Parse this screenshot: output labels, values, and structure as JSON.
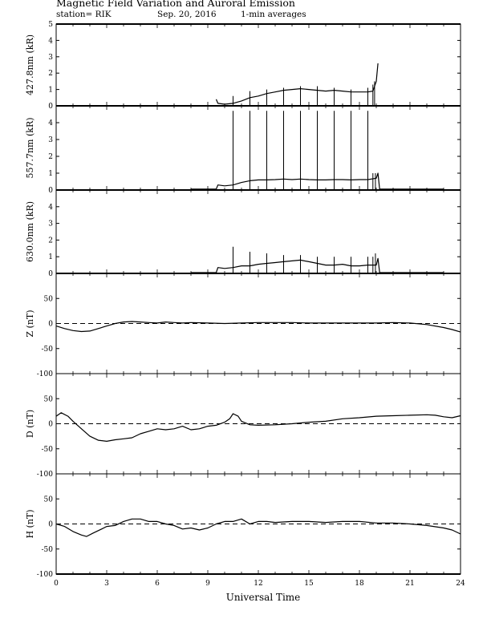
{
  "header": {
    "title": "Magnetic Field Variation and Auroral Emission",
    "station": "station= RIK",
    "date": "Sep. 20, 2016",
    "averaging": "1-min averages"
  },
  "x_axis": {
    "label": "Universal Time",
    "ticks": [
      "0",
      "3",
      "6",
      "9",
      "12",
      "15",
      "18",
      "21",
      "24"
    ]
  },
  "chart_data": [
    {
      "type": "line",
      "ylabel": "427.8nm (kR)",
      "xlim": [
        0,
        24
      ],
      "ylim": [
        0,
        5
      ],
      "yticks": [
        "0",
        "1",
        "2",
        "3",
        "4",
        "5"
      ],
      "dashed_zero": false,
      "series": [
        {
          "points": [
            [
              9.5,
              0.4
            ],
            [
              9.6,
              0.15
            ],
            [
              10,
              0.1
            ],
            [
              10.5,
              0.15
            ],
            [
              11,
              0.3
            ],
            [
              11.5,
              0.5
            ],
            [
              12,
              0.6
            ],
            [
              12.5,
              0.75
            ],
            [
              13,
              0.85
            ],
            [
              13.5,
              0.95
            ],
            [
              14,
              1.0
            ],
            [
              14.5,
              1.05
            ],
            [
              15,
              1.0
            ],
            [
              15.5,
              0.95
            ],
            [
              16,
              0.9
            ],
            [
              16.5,
              0.95
            ],
            [
              17,
              0.9
            ],
            [
              17.5,
              0.85
            ],
            [
              18,
              0.85
            ],
            [
              18.5,
              0.85
            ],
            [
              18.8,
              0.9
            ],
            [
              19.0,
              1.5
            ],
            [
              19.1,
              2.6
            ]
          ],
          "spikes": [
            [
              10.5,
              0.6
            ],
            [
              11.5,
              0.9
            ],
            [
              12.5,
              1.0
            ],
            [
              13.5,
              1.1
            ],
            [
              14.5,
              1.2
            ],
            [
              15.5,
              1.2
            ],
            [
              16.5,
              1.1
            ],
            [
              17.5,
              1.0
            ],
            [
              18.5,
              1.1
            ],
            [
              18.8,
              1.3
            ],
            [
              18.9,
              1.5
            ]
          ]
        }
      ]
    },
    {
      "type": "line",
      "ylabel": "557.7nm (kR)",
      "xlim": [
        0,
        24
      ],
      "ylim": [
        0,
        5
      ],
      "yticks": [
        "0",
        "1",
        "2",
        "3",
        "4"
      ],
      "dashed_zero": false,
      "series": [
        {
          "points": [
            [
              8.0,
              0.05
            ],
            [
              9.5,
              0.05
            ],
            [
              9.6,
              0.3
            ],
            [
              10,
              0.25
            ],
            [
              10.5,
              0.3
            ],
            [
              11,
              0.45
            ],
            [
              11.5,
              0.55
            ],
            [
              12,
              0.6
            ],
            [
              12.5,
              0.6
            ],
            [
              13,
              0.62
            ],
            [
              13.5,
              0.65
            ],
            [
              14,
              0.62
            ],
            [
              14.5,
              0.65
            ],
            [
              15,
              0.62
            ],
            [
              15.5,
              0.6
            ],
            [
              16,
              0.6
            ],
            [
              16.5,
              0.62
            ],
            [
              17,
              0.62
            ],
            [
              17.5,
              0.6
            ],
            [
              18,
              0.62
            ],
            [
              18.5,
              0.62
            ],
            [
              19.0,
              0.7
            ],
            [
              19.1,
              1.0
            ],
            [
              19.2,
              0.05
            ],
            [
              23.0,
              0.05
            ]
          ],
          "spikes": [
            [
              10.5,
              4.7
            ],
            [
              11.5,
              4.7
            ],
            [
              12.5,
              4.7
            ],
            [
              13.5,
              4.7
            ],
            [
              14.5,
              4.7
            ],
            [
              15.5,
              4.7
            ],
            [
              16.5,
              4.7
            ],
            [
              17.5,
              4.7
            ],
            [
              18.5,
              4.7
            ],
            [
              18.8,
              1.0
            ],
            [
              18.95,
              1.0
            ]
          ]
        }
      ]
    },
    {
      "type": "line",
      "ylabel": "630.0nm (kR)",
      "xlim": [
        0,
        24
      ],
      "ylim": [
        0,
        5
      ],
      "yticks": [
        "0",
        "1",
        "2",
        "3",
        "4"
      ],
      "dashed_zero": false,
      "series": [
        {
          "points": [
            [
              8.0,
              0.05
            ],
            [
              9.5,
              0.05
            ],
            [
              9.6,
              0.35
            ],
            [
              10,
              0.3
            ],
            [
              10.5,
              0.35
            ],
            [
              11,
              0.45
            ],
            [
              11.5,
              0.45
            ],
            [
              12,
              0.55
            ],
            [
              12.5,
              0.6
            ],
            [
              13,
              0.65
            ],
            [
              13.5,
              0.7
            ],
            [
              14,
              0.75
            ],
            [
              14.5,
              0.8
            ],
            [
              15,
              0.7
            ],
            [
              15.5,
              0.6
            ],
            [
              16,
              0.5
            ],
            [
              16.5,
              0.5
            ],
            [
              17,
              0.55
            ],
            [
              17.5,
              0.45
            ],
            [
              18,
              0.45
            ],
            [
              18.5,
              0.5
            ],
            [
              19.0,
              0.5
            ],
            [
              19.1,
              0.9
            ],
            [
              19.2,
              0.05
            ],
            [
              23.0,
              0.05
            ]
          ],
          "spikes": [
            [
              10.5,
              1.6
            ],
            [
              11.5,
              1.3
            ],
            [
              12.5,
              1.2
            ],
            [
              13.5,
              1.1
            ],
            [
              14.5,
              1.1
            ],
            [
              15.5,
              1.0
            ],
            [
              16.5,
              1.0
            ],
            [
              17.5,
              1.0
            ],
            [
              18.5,
              1.0
            ],
            [
              18.8,
              1.0
            ],
            [
              18.95,
              1.2
            ]
          ]
        }
      ]
    },
    {
      "type": "line",
      "ylabel": "Z (nT)",
      "xlim": [
        0,
        24
      ],
      "ylim": [
        -100,
        100
      ],
      "yticks": [
        "-100",
        "-50",
        "0",
        "50"
      ],
      "dashed_zero": true,
      "series": [
        {
          "points": [
            [
              0,
              -5
            ],
            [
              0.5,
              -10
            ],
            [
              1,
              -14
            ],
            [
              1.5,
              -16
            ],
            [
              2,
              -15
            ],
            [
              2.5,
              -10
            ],
            [
              3,
              -5
            ],
            [
              3.5,
              0
            ],
            [
              4,
              3
            ],
            [
              4.5,
              4
            ],
            [
              5,
              3
            ],
            [
              5.5,
              2
            ],
            [
              6,
              1
            ],
            [
              6.5,
              3
            ],
            [
              7,
              2
            ],
            [
              7.5,
              1
            ],
            [
              8,
              2
            ],
            [
              9,
              1
            ],
            [
              10,
              0
            ],
            [
              11,
              1
            ],
            [
              12,
              2
            ],
            [
              13,
              2
            ],
            [
              14,
              2
            ],
            [
              15,
              1
            ],
            [
              16,
              1
            ],
            [
              17,
              1
            ],
            [
              18,
              1
            ],
            [
              19,
              1
            ],
            [
              20,
              2
            ],
            [
              21,
              1
            ],
            [
              22,
              -2
            ],
            [
              23,
              -8
            ],
            [
              23.5,
              -12
            ],
            [
              24,
              -17
            ]
          ]
        }
      ]
    },
    {
      "type": "line",
      "ylabel": "D (nT)",
      "xlim": [
        0,
        24
      ],
      "ylim": [
        -100,
        100
      ],
      "yticks": [
        "-100",
        "-50",
        "0",
        "50"
      ],
      "dashed_zero": true,
      "series": [
        {
          "points": [
            [
              0,
              15
            ],
            [
              0.3,
              22
            ],
            [
              0.7,
              15
            ],
            [
              1,
              5
            ],
            [
              1.5,
              -10
            ],
            [
              2,
              -25
            ],
            [
              2.5,
              -33
            ],
            [
              3,
              -35
            ],
            [
              3.5,
              -32
            ],
            [
              4,
              -30
            ],
            [
              4.5,
              -28
            ],
            [
              5,
              -20
            ],
            [
              5.5,
              -15
            ],
            [
              6,
              -10
            ],
            [
              6.5,
              -12
            ],
            [
              7,
              -10
            ],
            [
              7.5,
              -5
            ],
            [
              8,
              -12
            ],
            [
              8.5,
              -10
            ],
            [
              9,
              -5
            ],
            [
              9.5,
              -3
            ],
            [
              10,
              3
            ],
            [
              10.3,
              10
            ],
            [
              10.5,
              20
            ],
            [
              10.8,
              15
            ],
            [
              11,
              5
            ],
            [
              11.5,
              -2
            ],
            [
              12,
              -3
            ],
            [
              13,
              -2
            ],
            [
              14,
              0
            ],
            [
              15,
              3
            ],
            [
              16,
              5
            ],
            [
              17,
              10
            ],
            [
              18,
              12
            ],
            [
              19,
              15
            ],
            [
              20,
              16
            ],
            [
              21,
              17
            ],
            [
              22,
              18
            ],
            [
              22.5,
              17
            ],
            [
              23,
              14
            ],
            [
              23.5,
              12
            ],
            [
              24,
              16
            ]
          ]
        }
      ]
    },
    {
      "type": "line",
      "ylabel": "H (nT)",
      "xlim": [
        0,
        24
      ],
      "ylim": [
        -100,
        100
      ],
      "yticks": [
        "-100",
        "-50",
        "0",
        "50"
      ],
      "dashed_zero": true,
      "series": [
        {
          "points": [
            [
              0,
              0
            ],
            [
              0.5,
              -5
            ],
            [
              1,
              -15
            ],
            [
              1.5,
              -22
            ],
            [
              1.8,
              -25
            ],
            [
              2.2,
              -18
            ],
            [
              2.7,
              -10
            ],
            [
              3,
              -5
            ],
            [
              3.5,
              -3
            ],
            [
              4,
              5
            ],
            [
              4.5,
              10
            ],
            [
              5,
              10
            ],
            [
              5.5,
              5
            ],
            [
              6,
              5
            ],
            [
              6.5,
              0
            ],
            [
              7,
              -3
            ],
            [
              7.5,
              -10
            ],
            [
              8,
              -8
            ],
            [
              8.5,
              -12
            ],
            [
              9,
              -8
            ],
            [
              9.5,
              0
            ],
            [
              10,
              5
            ],
            [
              10.5,
              5
            ],
            [
              11,
              10
            ],
            [
              11.5,
              0
            ],
            [
              12,
              5
            ],
            [
              12.5,
              5
            ],
            [
              13,
              3
            ],
            [
              14,
              5
            ],
            [
              15,
              5
            ],
            [
              16,
              3
            ],
            [
              17,
              5
            ],
            [
              18,
              5
            ],
            [
              19,
              2
            ],
            [
              20,
              2
            ],
            [
              21,
              0
            ],
            [
              22,
              -3
            ],
            [
              23,
              -8
            ],
            [
              23.5,
              -12
            ],
            [
              24,
              -20
            ]
          ]
        }
      ]
    }
  ]
}
